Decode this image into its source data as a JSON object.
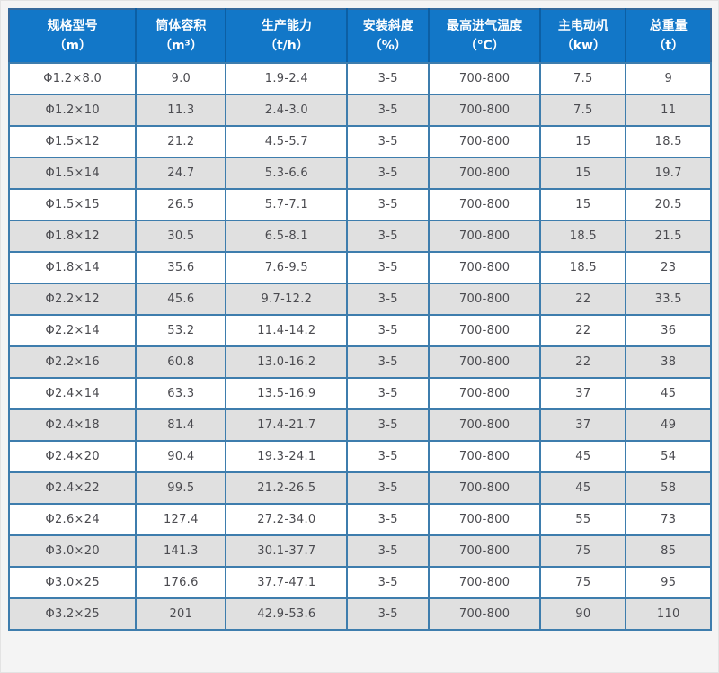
{
  "colors": {
    "page_bg": "#f4f4f4",
    "header_bg": "#1277c8",
    "header_separator": "#0c5fa4",
    "header_text": "#ffffff",
    "cell_border": "#3e7dad",
    "row_even_bg": "#ffffff",
    "row_odd_bg": "#e0e0e0",
    "cell_text": "#4b4b50"
  },
  "table": {
    "header": [
      {
        "title": "规格型号",
        "unit": "（m）"
      },
      {
        "title": "筒体容积",
        "unit": "（m³）"
      },
      {
        "title": "生产能力",
        "unit": "（t/h）"
      },
      {
        "title": "安装斜度",
        "unit": "（%）"
      },
      {
        "title": "最高进气温度",
        "unit": "（℃）"
      },
      {
        "title": "主电动机",
        "unit": "（kw）"
      },
      {
        "title": "总重量",
        "unit": "（t）"
      }
    ],
    "col_widths_pct": [
      18.1,
      12.8,
      17.3,
      11.6,
      15.9,
      12.2,
      12.1
    ],
    "rows": [
      [
        "Φ1.2×8.0",
        "9.0",
        "1.9-2.4",
        "3-5",
        "700-800",
        "7.5",
        "9"
      ],
      [
        "Φ1.2×10",
        "11.3",
        "2.4-3.0",
        "3-5",
        "700-800",
        "7.5",
        "11"
      ],
      [
        "Φ1.5×12",
        "21.2",
        "4.5-5.7",
        "3-5",
        "700-800",
        "15",
        "18.5"
      ],
      [
        "Φ1.5×14",
        "24.7",
        "5.3-6.6",
        "3-5",
        "700-800",
        "15",
        "19.7"
      ],
      [
        "Φ1.5×15",
        "26.5",
        "5.7-7.1",
        "3-5",
        "700-800",
        "15",
        "20.5"
      ],
      [
        "Φ1.8×12",
        "30.5",
        "6.5-8.1",
        "3-5",
        "700-800",
        "18.5",
        "21.5"
      ],
      [
        "Φ1.8×14",
        "35.6",
        "7.6-9.5",
        "3-5",
        "700-800",
        "18.5",
        "23"
      ],
      [
        "Φ2.2×12",
        "45.6",
        "9.7-12.2",
        "3-5",
        "700-800",
        "22",
        "33.5"
      ],
      [
        "Φ2.2×14",
        "53.2",
        "11.4-14.2",
        "3-5",
        "700-800",
        "22",
        "36"
      ],
      [
        "Φ2.2×16",
        "60.8",
        "13.0-16.2",
        "3-5",
        "700-800",
        "22",
        "38"
      ],
      [
        "Φ2.4×14",
        "63.3",
        "13.5-16.9",
        "3-5",
        "700-800",
        "37",
        "45"
      ],
      [
        "Φ2.4×18",
        "81.4",
        "17.4-21.7",
        "3-5",
        "700-800",
        "37",
        "49"
      ],
      [
        "Φ2.4×20",
        "90.4",
        "19.3-24.1",
        "3-5",
        "700-800",
        "45",
        "54"
      ],
      [
        "Φ2.4×22",
        "99.5",
        "21.2-26.5",
        "3-5",
        "700-800",
        "45",
        "58"
      ],
      [
        "Φ2.6×24",
        "127.4",
        "27.2-34.0",
        "3-5",
        "700-800",
        "55",
        "73"
      ],
      [
        "Φ3.0×20",
        "141.3",
        "30.1-37.7",
        "3-5",
        "700-800",
        "75",
        "85"
      ],
      [
        "Φ3.0×25",
        "176.6",
        "37.7-47.1",
        "3-5",
        "700-800",
        "75",
        "95"
      ],
      [
        "Φ3.2×25",
        "201",
        "42.9-53.6",
        "3-5",
        "700-800",
        "90",
        "110"
      ]
    ]
  },
  "chart_data": {
    "type": "table",
    "title": "",
    "columns": [
      "规格型号（m）",
      "筒体容积（m³）",
      "生产能力（t/h）",
      "安装斜度（%）",
      "最高进气温度（℃）",
      "主电动机（kw）",
      "总重量（t）"
    ],
    "rows": [
      [
        "Φ1.2×8.0",
        "9.0",
        "1.9-2.4",
        "3-5",
        "700-800",
        "7.5",
        "9"
      ],
      [
        "Φ1.2×10",
        "11.3",
        "2.4-3.0",
        "3-5",
        "700-800",
        "7.5",
        "11"
      ],
      [
        "Φ1.5×12",
        "21.2",
        "4.5-5.7",
        "3-5",
        "700-800",
        "15",
        "18.5"
      ],
      [
        "Φ1.5×14",
        "24.7",
        "5.3-6.6",
        "3-5",
        "700-800",
        "15",
        "19.7"
      ],
      [
        "Φ1.5×15",
        "26.5",
        "5.7-7.1",
        "3-5",
        "700-800",
        "15",
        "20.5"
      ],
      [
        "Φ1.8×12",
        "30.5",
        "6.5-8.1",
        "3-5",
        "700-800",
        "18.5",
        "21.5"
      ],
      [
        "Φ1.8×14",
        "35.6",
        "7.6-9.5",
        "3-5",
        "700-800",
        "18.5",
        "23"
      ],
      [
        "Φ2.2×12",
        "45.6",
        "9.7-12.2",
        "3-5",
        "700-800",
        "22",
        "33.5"
      ],
      [
        "Φ2.2×14",
        "53.2",
        "11.4-14.2",
        "3-5",
        "700-800",
        "22",
        "36"
      ],
      [
        "Φ2.2×16",
        "60.8",
        "13.0-16.2",
        "3-5",
        "700-800",
        "22",
        "38"
      ],
      [
        "Φ2.4×14",
        "63.3",
        "13.5-16.9",
        "3-5",
        "700-800",
        "37",
        "45"
      ],
      [
        "Φ2.4×18",
        "81.4",
        "17.4-21.7",
        "3-5",
        "700-800",
        "37",
        "49"
      ],
      [
        "Φ2.4×20",
        "90.4",
        "19.3-24.1",
        "3-5",
        "700-800",
        "45",
        "54"
      ],
      [
        "Φ2.4×22",
        "99.5",
        "21.2-26.5",
        "3-5",
        "700-800",
        "45",
        "58"
      ],
      [
        "Φ2.6×24",
        "127.4",
        "27.2-34.0",
        "3-5",
        "700-800",
        "55",
        "73"
      ],
      [
        "Φ3.0×20",
        "141.3",
        "30.1-37.7",
        "3-5",
        "700-800",
        "75",
        "85"
      ],
      [
        "Φ3.0×25",
        "176.6",
        "37.7-47.1",
        "3-5",
        "700-800",
        "75",
        "95"
      ],
      [
        "Φ3.2×25",
        "201",
        "42.9-53.6",
        "3-5",
        "700-800",
        "90",
        "110"
      ]
    ]
  }
}
